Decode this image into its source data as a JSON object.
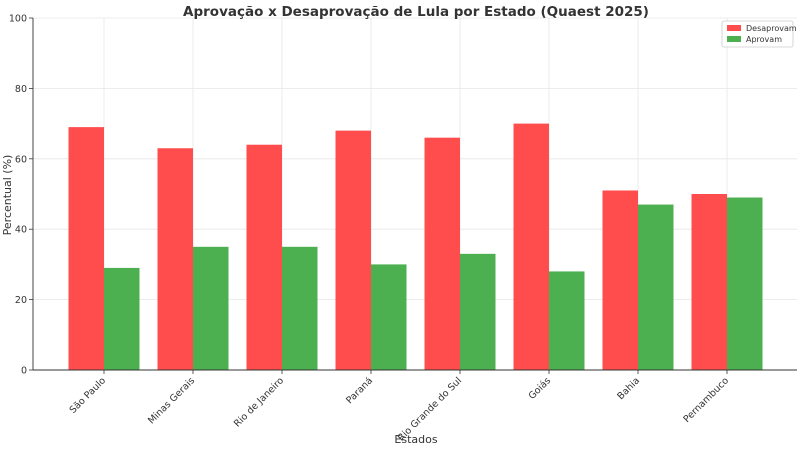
{
  "chart_data": {
    "type": "bar",
    "title": "Aprovação x Desaprovação de Lula por Estado (Quaest 2025)",
    "xlabel": "Estados",
    "ylabel": "Percentual (%)",
    "categories": [
      "São Paulo",
      "Minas Gerais",
      "Rio de Janeiro",
      "Paraná",
      "Rio Grande do Sul",
      "Goiás",
      "Bahia",
      "Pernambuco"
    ],
    "series": [
      {
        "name": "Desaprovam",
        "color": "#ff4d4d",
        "values": [
          69,
          63,
          64,
          68,
          66,
          70,
          51,
          50
        ]
      },
      {
        "name": "Aprovam",
        "color": "#4caf50",
        "values": [
          29,
          35,
          35,
          30,
          33,
          28,
          47,
          49
        ]
      }
    ],
    "ylim": [
      0,
      100
    ],
    "yticks": [
      0,
      20,
      40,
      60,
      80,
      100
    ],
    "grid": true,
    "legend_position": "top-right"
  }
}
